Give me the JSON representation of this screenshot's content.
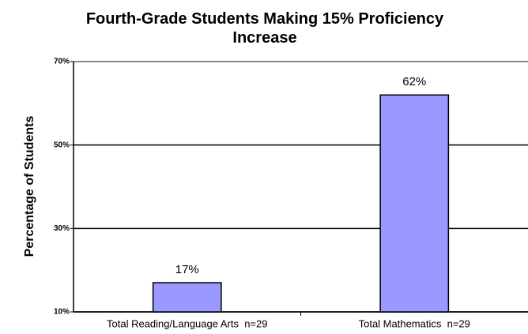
{
  "chart_data": {
    "type": "bar",
    "title": "Fourth-Grade Students Making 15% Proficiency Increase",
    "y_label": "Percentage of Students",
    "categories": [
      "Total Reading/Language Arts  n=29",
      "Total Mathematics  n=29"
    ],
    "values": [
      17,
      62
    ],
    "value_labels": [
      "17%",
      "62%"
    ],
    "color": "#9999ff",
    "ylim": [
      10,
      70
    ],
    "yticks": [
      {
        "value": 10,
        "label": "10%"
      },
      {
        "value": 30,
        "label": "30%"
      },
      {
        "value": 50,
        "label": "50%"
      },
      {
        "value": 70,
        "label": "70%"
      }
    ],
    "grid": true
  }
}
